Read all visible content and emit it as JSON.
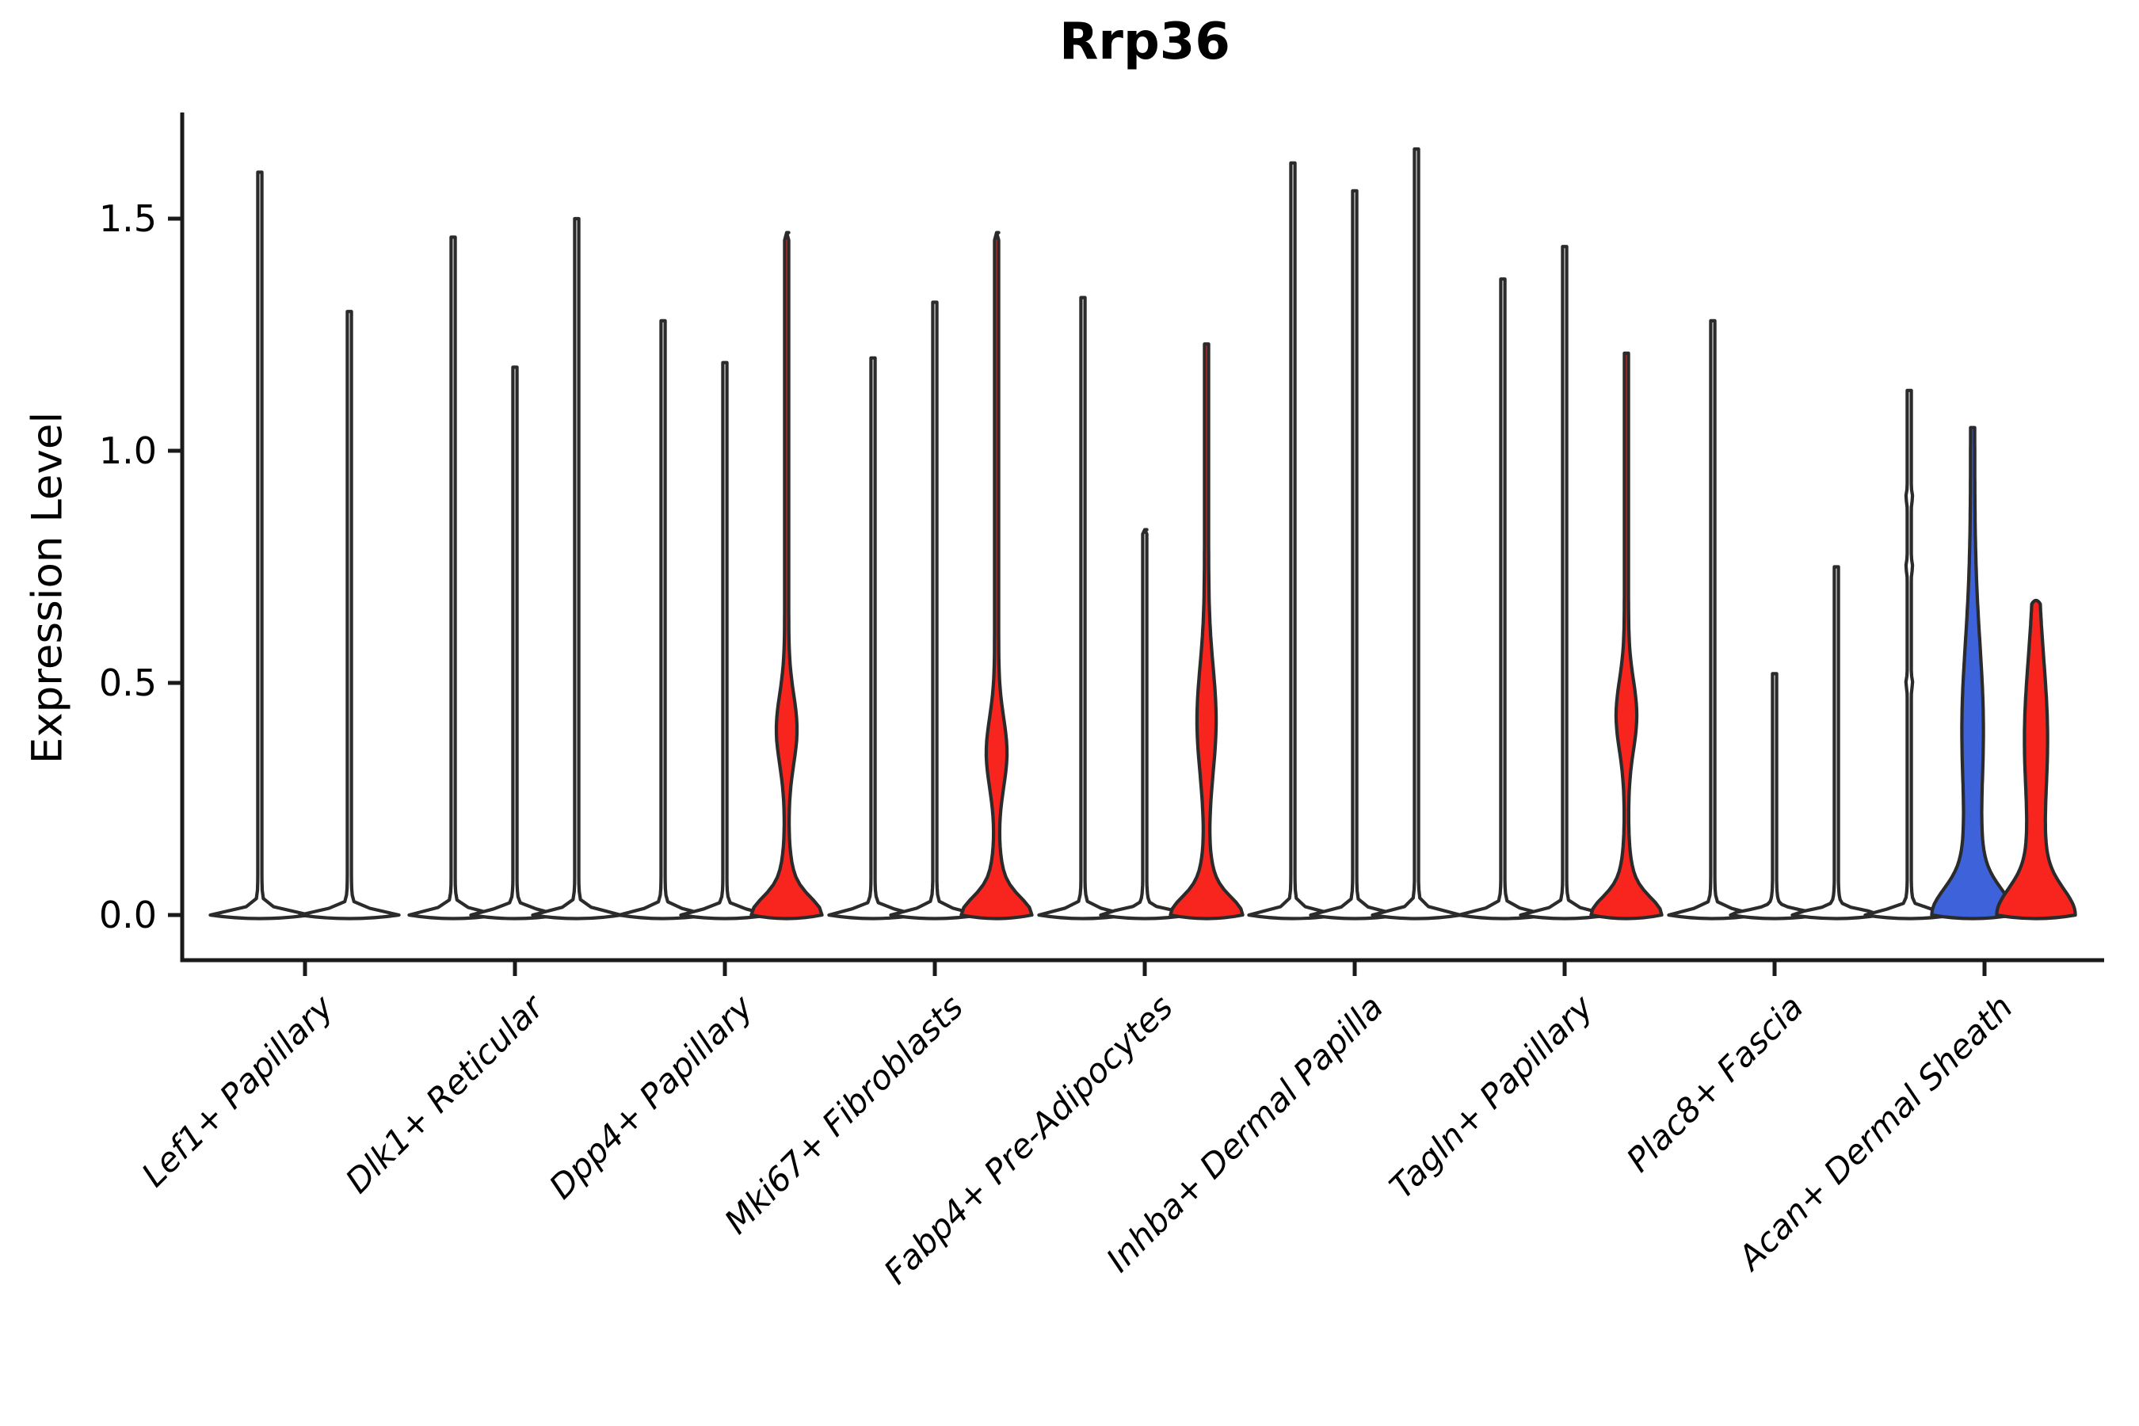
{
  "chart_data": {
    "type": "violin",
    "title": "Rrp36",
    "ylabel": "Expression Level",
    "xlabel": "",
    "grid": false,
    "legend": null,
    "ylim": [
      0,
      1.73
    ],
    "yticks": [
      {
        "value": 0.0,
        "label": "0.0"
      },
      {
        "value": 0.5,
        "label": "0.5"
      },
      {
        "value": 1.0,
        "label": "1.0"
      },
      {
        "value": 1.5,
        "label": "1.5"
      }
    ],
    "categories": [
      "Lef1+ Papillary",
      "Dlk1+ Reticular",
      "Dpp4+ Papillary",
      "Mki67+ Fibroblasts",
      "Fabp4+ Pre-Adipocytes",
      "Inhba+ Dermal Papilla",
      "Tagln+ Papillary",
      "Plac8+ Fascia",
      "Acan+ Dermal Sheath"
    ],
    "palette": {
      "red": "#f8251e",
      "blue": "#3e62d9",
      "violin_outline": "#2b2b2b",
      "axis_color": "#1a1a1a",
      "text_color": "#000000",
      "background": "#ffffff"
    },
    "groups": [
      {
        "category": "Lef1+ Papillary",
        "violins": [
          {
            "offset": -57,
            "max": 1.6,
            "fill": "none",
            "spike_hw": 2.6,
            "bumps": [
              [
                0,
                0.014,
                55
              ],
              [
                0,
                0.034,
                5
              ]
            ]
          },
          {
            "offset": 56,
            "max": 1.3,
            "fill": "none",
            "spike_hw": 2.6,
            "bumps": [
              [
                0,
                0.014,
                55
              ],
              [
                0,
                0.034,
                5
              ]
            ]
          }
        ]
      },
      {
        "category": "Dlk1+ Reticular",
        "violins": [
          {
            "offset": -78,
            "max": 1.46,
            "fill": "none",
            "spike_hw": 2.6,
            "bumps": [
              [
                0,
                0.014,
                48
              ],
              [
                0,
                0.034,
                5
              ]
            ]
          },
          {
            "offset": 0,
            "max": 1.18,
            "fill": "none",
            "spike_hw": 2.6,
            "bumps": [
              [
                0,
                0.014,
                48
              ],
              [
                0,
                0.034,
                5
              ]
            ]
          },
          {
            "offset": 78,
            "max": 1.5,
            "fill": "none",
            "spike_hw": 2.6,
            "bumps": [
              [
                0,
                0.014,
                48
              ],
              [
                0,
                0.034,
                5
              ]
            ]
          }
        ]
      },
      {
        "category": "Dpp4+ Papillary",
        "violins": [
          {
            "offset": -78,
            "max": 1.28,
            "fill": "none",
            "spike_hw": 2.6,
            "bumps": [
              [
                0,
                0.014,
                48
              ],
              [
                0,
                0.034,
                5
              ]
            ]
          },
          {
            "offset": 0,
            "max": 1.19,
            "fill": "none",
            "spike_hw": 2.6,
            "bumps": [
              [
                0,
                0.014,
                48
              ],
              [
                0,
                0.034,
                5
              ]
            ]
          },
          {
            "offset": 78,
            "max": 1.47,
            "fill": "red",
            "body_range": [
              0.24,
              0.6
            ],
            "spike_hw": 2.6,
            "bumps": [
              [
                0.4,
                0.105,
                10.5
              ],
              [
                0,
                0.05,
                28
              ],
              [
                0,
                0.1,
                14
              ]
            ]
          }
        ]
      },
      {
        "category": "Mki67+ Fibroblasts",
        "violins": [
          {
            "offset": -78,
            "max": 1.2,
            "fill": "none",
            "spike_hw": 2.6,
            "bumps": [
              [
                0,
                0.014,
                48
              ],
              [
                0,
                0.034,
                5
              ]
            ]
          },
          {
            "offset": 0,
            "max": 1.32,
            "fill": "none",
            "spike_hw": 2.6,
            "bumps": [
              [
                0,
                0.014,
                48
              ],
              [
                0,
                0.034,
                5
              ]
            ]
          },
          {
            "offset": 78,
            "max": 1.47,
            "fill": "red",
            "body_range": [
              0.2,
              0.53
            ],
            "spike_hw": 2.6,
            "bumps": [
              [
                0.35,
                0.105,
                10.5
              ],
              [
                0,
                0.05,
                28
              ],
              [
                0,
                0.1,
                14
              ]
            ]
          }
        ]
      },
      {
        "category": "Fabp4+ Pre-Adipocytes",
        "violins": [
          {
            "offset": -78,
            "max": 1.33,
            "fill": "none",
            "spike_hw": 2.6,
            "bumps": [
              [
                0,
                0.014,
                48
              ],
              [
                0,
                0.034,
                5
              ]
            ]
          },
          {
            "offset": 0,
            "max": 0.83,
            "fill": "none",
            "spike_hw": 2.6,
            "bumps": [
              [
                0,
                0.014,
                48
              ],
              [
                0,
                0.034,
                5
              ]
            ]
          },
          {
            "offset": 78,
            "max": 1.23,
            "fill": "red",
            "body_range": [
              0.0,
              0.63
            ],
            "spike_hw": 2.6,
            "bumps": [
              [
                0.42,
                0.16,
                9.5
              ],
              [
                0,
                0.05,
                28
              ],
              [
                0,
                0.1,
                15
              ]
            ]
          }
        ]
      },
      {
        "category": "Inhba+ Dermal Papilla",
        "violins": [
          {
            "offset": -78,
            "max": 1.62,
            "fill": "none",
            "spike_hw": 2.6,
            "bumps": [
              [
                0,
                0.014,
                48
              ],
              [
                0,
                0.034,
                5
              ]
            ]
          },
          {
            "offset": 0,
            "max": 1.56,
            "fill": "none",
            "spike_hw": 2.6,
            "bumps": [
              [
                0,
                0.014,
                48
              ],
              [
                0,
                0.034,
                5
              ]
            ]
          },
          {
            "offset": 78,
            "max": 1.65,
            "fill": "none",
            "spike_hw": 2.6,
            "bumps": [
              [
                0,
                0.014,
                48
              ],
              [
                0,
                0.034,
                5
              ]
            ]
          }
        ]
      },
      {
        "category": "Tagln+ Papillary",
        "violins": [
          {
            "offset": -78,
            "max": 1.37,
            "fill": "none",
            "spike_hw": 2.6,
            "bumps": [
              [
                0,
                0.014,
                48
              ],
              [
                0,
                0.034,
                5
              ]
            ]
          },
          {
            "offset": 0,
            "max": 1.44,
            "fill": "none",
            "spike_hw": 2.6,
            "bumps": [
              [
                0,
                0.014,
                48
              ],
              [
                0,
                0.034,
                5
              ]
            ]
          },
          {
            "offset": 78,
            "max": 1.21,
            "fill": "red",
            "body_range": [
              0.26,
              0.63
            ],
            "spike_hw": 2.6,
            "bumps": [
              [
                0.43,
                0.105,
                10.5
              ],
              [
                0,
                0.05,
                28
              ],
              [
                0,
                0.1,
                14
              ]
            ]
          }
        ]
      },
      {
        "category": "Plac8+ Fascia",
        "violins": [
          {
            "offset": -78,
            "max": 1.28,
            "fill": "none",
            "spike_hw": 2.6,
            "bumps": [
              [
                0,
                0.014,
                48
              ],
              [
                0,
                0.034,
                5
              ]
            ]
          },
          {
            "offset": 0,
            "max": 0.52,
            "fill": "none",
            "spike_hw": 2.6,
            "bumps": [
              [
                0,
                0.014,
                48
              ],
              [
                0,
                0.034,
                5
              ]
            ]
          },
          {
            "offset": 78,
            "max": 0.75,
            "fill": "none",
            "spike_hw": 2.6,
            "bumps": [
              [
                0,
                0.014,
                48
              ],
              [
                0,
                0.034,
                5
              ]
            ]
          }
        ]
      },
      {
        "category": "Acan+ Dermal Sheath",
        "violins": [
          {
            "offset": -95,
            "max": 1.13,
            "fill": "none",
            "spike_hw": 2.6,
            "bumps": [
              [
                0,
                0.014,
                48
              ],
              [
                0,
                0.034,
                5
              ],
              [
                0.5,
                0.013,
                1.6
              ],
              [
                0.75,
                0.013,
                1.6
              ],
              [
                0.9,
                0.013,
                1.6
              ]
            ]
          },
          {
            "offset": -15,
            "max": 1.05,
            "fill": "blue",
            "body_range": [
              0.0,
              0.74
            ],
            "spike_hw": 2.6,
            "bumps": [
              [
                0.4,
                0.26,
                11
              ],
              [
                0,
                0.075,
                34
              ],
              [
                0,
                0.16,
                14
              ]
            ]
          },
          {
            "offset": 65,
            "max": 0.67,
            "fill": "red",
            "body_range": [
              0.0,
              0.67
            ],
            "rounded_top": true,
            "spike_hw": 2.6,
            "bumps": [
              [
                0.38,
                0.24,
                12
              ],
              [
                0,
                0.075,
                32
              ],
              [
                0,
                0.15,
                14
              ]
            ]
          }
        ]
      }
    ]
  }
}
